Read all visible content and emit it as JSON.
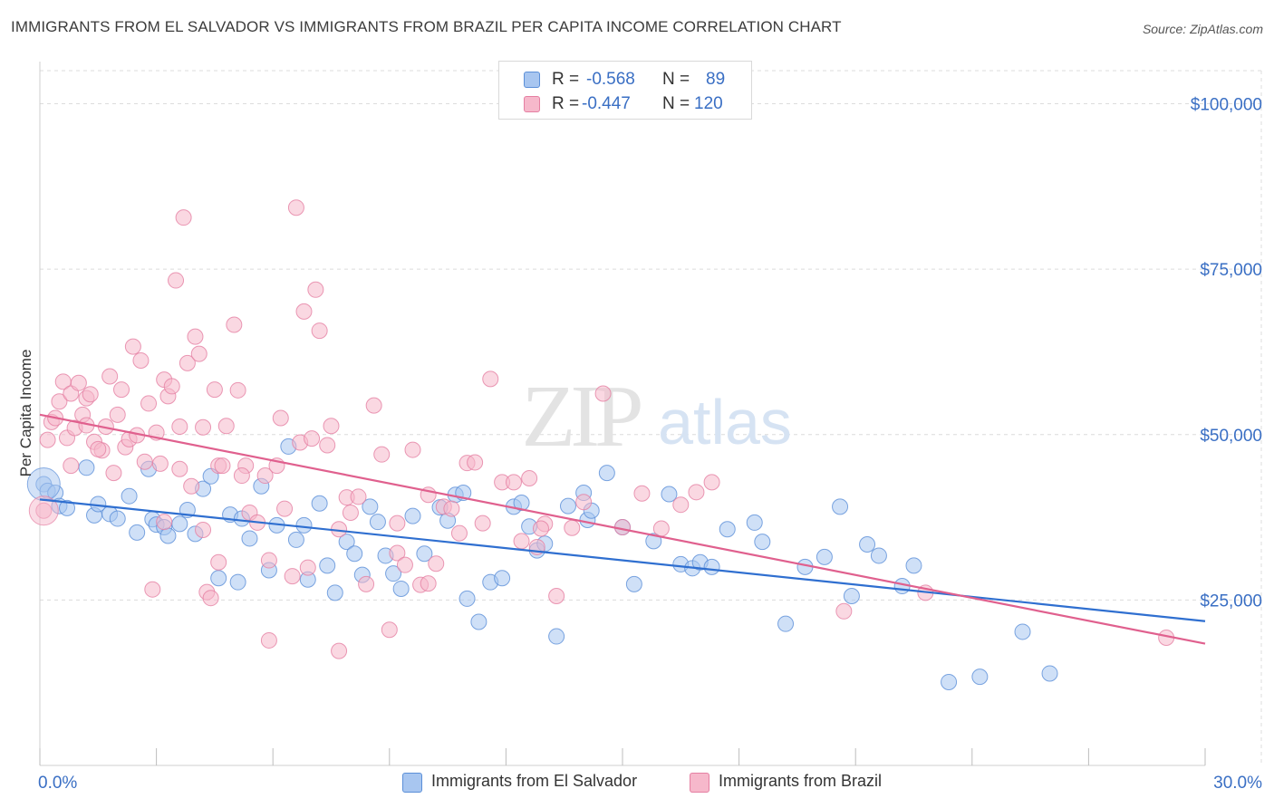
{
  "title": "IMMIGRANTS FROM EL SALVADOR VS IMMIGRANTS FROM BRAZIL PER CAPITA INCOME CORRELATION CHART",
  "source": "Source: ZipAtlas.com",
  "watermark": {
    "zip": "ZIP",
    "atlas": "atlas"
  },
  "legend": {
    "rows": [
      {
        "r_label": "R =",
        "r_value": "-0.568",
        "n_label": "N =",
        "n_value": "89",
        "color": "#a8c6f0",
        "border": "#5b8fd8"
      },
      {
        "r_label": "R =",
        "r_value": "-0.447",
        "n_label": "N =",
        "n_value": "120",
        "color": "#f6b8cb",
        "border": "#e57fa2"
      }
    ]
  },
  "bottom_legend": {
    "el_salvador": "Immigrants from El Salvador",
    "brazil": "Immigrants from Brazil"
  },
  "chart_data": {
    "type": "scatter",
    "xlabel": "",
    "ylabel": "Per Capita Income",
    "xlim": [
      0,
      30
    ],
    "ylim": [
      0,
      105000
    ],
    "x_tick_labels": [
      {
        "value": 0,
        "label": "0.0%"
      },
      {
        "value": 30,
        "label": "30.0%"
      }
    ],
    "y_tick_labels": [
      {
        "value": 25000,
        "label": "$25,000"
      },
      {
        "value": 50000,
        "label": "$50,000"
      },
      {
        "value": 75000,
        "label": "$75,000"
      },
      {
        "value": 100000,
        "label": "$100,000"
      }
    ],
    "grid": true,
    "series": [
      {
        "name": "Immigrants from El Salvador",
        "color": "#5b8fd8",
        "fill": "#a8c6f0",
        "trend": {
          "x": [
            0,
            30
          ],
          "y": [
            40200,
            21800
          ],
          "color": "#2f6fd0"
        },
        "points": [
          [
            0.1,
            42500
          ],
          [
            0.2,
            41500
          ],
          [
            0.4,
            41200
          ],
          [
            0.5,
            39200
          ],
          [
            0.7,
            38900
          ],
          [
            1.2,
            45000
          ],
          [
            1.4,
            37800
          ],
          [
            1.5,
            39500
          ],
          [
            1.8,
            38000
          ],
          [
            2.0,
            37300
          ],
          [
            2.3,
            40700
          ],
          [
            2.5,
            35200
          ],
          [
            2.8,
            44800
          ],
          [
            2.9,
            37200
          ],
          [
            3.0,
            36400
          ],
          [
            3.2,
            36000
          ],
          [
            3.3,
            34700
          ],
          [
            3.6,
            36500
          ],
          [
            3.8,
            38600
          ],
          [
            4.0,
            35000
          ],
          [
            4.2,
            41800
          ],
          [
            4.4,
            43700
          ],
          [
            4.6,
            28300
          ],
          [
            4.9,
            37900
          ],
          [
            5.1,
            27700
          ],
          [
            5.2,
            37300
          ],
          [
            5.4,
            34300
          ],
          [
            5.7,
            42200
          ],
          [
            5.9,
            29500
          ],
          [
            6.1,
            36300
          ],
          [
            6.4,
            48200
          ],
          [
            6.6,
            34100
          ],
          [
            6.8,
            36300
          ],
          [
            6.9,
            28100
          ],
          [
            7.2,
            39600
          ],
          [
            7.4,
            30200
          ],
          [
            7.6,
            26100
          ],
          [
            7.9,
            33800
          ],
          [
            8.1,
            32000
          ],
          [
            8.3,
            28800
          ],
          [
            8.5,
            39100
          ],
          [
            8.7,
            36800
          ],
          [
            8.9,
            31700
          ],
          [
            9.1,
            29000
          ],
          [
            9.3,
            26700
          ],
          [
            9.6,
            37700
          ],
          [
            9.9,
            32000
          ],
          [
            10.3,
            39000
          ],
          [
            10.5,
            37000
          ],
          [
            10.7,
            40900
          ],
          [
            10.9,
            41200
          ],
          [
            11.0,
            25200
          ],
          [
            11.3,
            21700
          ],
          [
            11.6,
            27700
          ],
          [
            11.9,
            28300
          ],
          [
            12.2,
            39100
          ],
          [
            12.4,
            39700
          ],
          [
            12.6,
            36100
          ],
          [
            12.8,
            32500
          ],
          [
            13.0,
            33500
          ],
          [
            13.3,
            19500
          ],
          [
            13.6,
            39200
          ],
          [
            14.0,
            41200
          ],
          [
            14.1,
            37100
          ],
          [
            14.2,
            38500
          ],
          [
            14.6,
            44200
          ],
          [
            15.0,
            36000
          ],
          [
            15.3,
            27400
          ],
          [
            15.8,
            33900
          ],
          [
            16.2,
            41000
          ],
          [
            16.5,
            30400
          ],
          [
            16.8,
            29800
          ],
          [
            17.0,
            30700
          ],
          [
            17.3,
            30000
          ],
          [
            17.7,
            35700
          ],
          [
            18.4,
            36700
          ],
          [
            18.6,
            33800
          ],
          [
            19.2,
            21400
          ],
          [
            19.7,
            30000
          ],
          [
            20.2,
            31500
          ],
          [
            20.6,
            39100
          ],
          [
            20.9,
            25600
          ],
          [
            21.3,
            33400
          ],
          [
            21.6,
            31700
          ],
          [
            22.2,
            27100
          ],
          [
            22.5,
            30200
          ],
          [
            23.4,
            12600
          ],
          [
            24.2,
            13400
          ],
          [
            25.3,
            20200
          ],
          [
            26.0,
            13900
          ]
        ]
      },
      {
        "name": "Immigrants from Brazil",
        "color": "#e57fa2",
        "fill": "#f6b8cb",
        "trend": {
          "x": [
            0,
            30
          ],
          "y": [
            53000,
            18400
          ],
          "color": "#e0608e"
        },
        "points": [
          [
            0.1,
            38500
          ],
          [
            0.2,
            49200
          ],
          [
            0.3,
            51900
          ],
          [
            0.4,
            52500
          ],
          [
            0.5,
            55000
          ],
          [
            0.6,
            58000
          ],
          [
            0.7,
            49500
          ],
          [
            0.8,
            56200
          ],
          [
            0.9,
            51000
          ],
          [
            1.0,
            57800
          ],
          [
            1.1,
            53000
          ],
          [
            1.2,
            55500
          ],
          [
            1.3,
            56100
          ],
          [
            1.4,
            48900
          ],
          [
            1.6,
            47600
          ],
          [
            1.7,
            51200
          ],
          [
            1.8,
            58800
          ],
          [
            1.9,
            44200
          ],
          [
            2.0,
            53000
          ],
          [
            2.1,
            56800
          ],
          [
            2.2,
            48100
          ],
          [
            2.3,
            49300
          ],
          [
            2.4,
            63300
          ],
          [
            2.5,
            49900
          ],
          [
            2.6,
            61200
          ],
          [
            2.7,
            45900
          ],
          [
            2.8,
            54700
          ],
          [
            3.0,
            50300
          ],
          [
            3.1,
            45600
          ],
          [
            3.2,
            58300
          ],
          [
            3.3,
            55800
          ],
          [
            3.4,
            57300
          ],
          [
            3.5,
            73300
          ],
          [
            3.6,
            51200
          ],
          [
            3.7,
            82800
          ],
          [
            3.8,
            60800
          ],
          [
            3.9,
            42200
          ],
          [
            4.0,
            64800
          ],
          [
            4.1,
            62200
          ],
          [
            4.2,
            35600
          ],
          [
            4.3,
            26200
          ],
          [
            4.4,
            25300
          ],
          [
            4.5,
            56800
          ],
          [
            4.6,
            45300
          ],
          [
            4.7,
            45300
          ],
          [
            4.8,
            51300
          ],
          [
            5.0,
            66600
          ],
          [
            5.1,
            56700
          ],
          [
            5.3,
            45300
          ],
          [
            5.4,
            38200
          ],
          [
            5.6,
            36700
          ],
          [
            5.8,
            43800
          ],
          [
            5.9,
            31000
          ],
          [
            6.1,
            45300
          ],
          [
            6.2,
            52500
          ],
          [
            6.3,
            38800
          ],
          [
            6.5,
            28600
          ],
          [
            6.6,
            84300
          ],
          [
            6.7,
            48800
          ],
          [
            6.8,
            68600
          ],
          [
            7.0,
            49400
          ],
          [
            7.1,
            71900
          ],
          [
            7.2,
            65700
          ],
          [
            7.4,
            48400
          ],
          [
            7.5,
            51300
          ],
          [
            7.7,
            35700
          ],
          [
            7.9,
            40500
          ],
          [
            8.0,
            38200
          ],
          [
            8.2,
            40600
          ],
          [
            8.4,
            27400
          ],
          [
            8.6,
            54400
          ],
          [
            8.8,
            47000
          ],
          [
            9.0,
            20500
          ],
          [
            9.2,
            32100
          ],
          [
            9.4,
            30300
          ],
          [
            9.6,
            47700
          ],
          [
            9.8,
            27300
          ],
          [
            10.0,
            40900
          ],
          [
            10.2,
            30500
          ],
          [
            10.4,
            39100
          ],
          [
            10.6,
            38800
          ],
          [
            10.8,
            35100
          ],
          [
            11.0,
            45700
          ],
          [
            11.2,
            45800
          ],
          [
            11.4,
            36600
          ],
          [
            11.6,
            58400
          ],
          [
            11.9,
            42800
          ],
          [
            12.2,
            42800
          ],
          [
            12.4,
            33900
          ],
          [
            12.6,
            43400
          ],
          [
            12.8,
            33000
          ],
          [
            13.0,
            36500
          ],
          [
            13.3,
            25600
          ],
          [
            13.7,
            35900
          ],
          [
            14.0,
            39800
          ],
          [
            14.5,
            56200
          ],
          [
            15.0,
            36000
          ],
          [
            15.5,
            41100
          ],
          [
            16.0,
            35800
          ],
          [
            16.5,
            39400
          ],
          [
            16.9,
            41300
          ],
          [
            17.3,
            42800
          ],
          [
            5.9,
            18900
          ],
          [
            7.7,
            17300
          ],
          [
            4.6,
            30700
          ],
          [
            3.2,
            36800
          ],
          [
            6.9,
            29900
          ],
          [
            2.9,
            26600
          ],
          [
            1.5,
            47800
          ],
          [
            22.8,
            26100
          ],
          [
            29.0,
            19300
          ],
          [
            20.7,
            23300
          ],
          [
            12.9,
            35800
          ],
          [
            10.0,
            27500
          ],
          [
            0.8,
            45300
          ],
          [
            3.6,
            44800
          ],
          [
            9.2,
            36600
          ],
          [
            4.2,
            51100
          ],
          [
            5.2,
            43800
          ],
          [
            1.2,
            51400
          ]
        ]
      }
    ]
  }
}
